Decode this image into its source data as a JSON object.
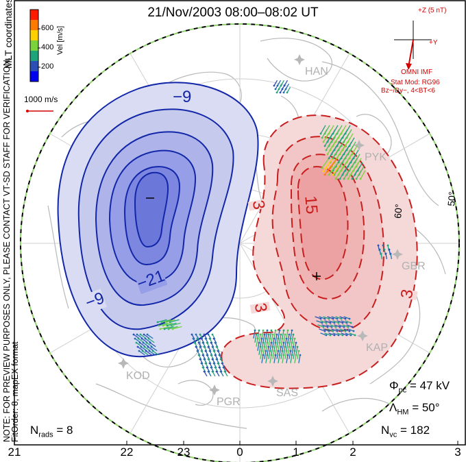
{
  "title": "21/Nov/2003 08:00–08:02 UT",
  "coord_label": "MLT coordinates",
  "note_line1": "NOTE: FOR PREVIEW PURPOSES ONLY, PLEASE CONTACT VT-SD STAFF FOR VERIFICATION.",
  "note_line2": "FitOrder: 8, mapEX format",
  "colorbar": {
    "label": "Vel [m/s]",
    "ticks": [
      "600",
      "400",
      "200"
    ],
    "colors": [
      "#ff1a00",
      "#ff7a00",
      "#ffd000",
      "#7ad23c",
      "#1fa37a",
      "#2b4fb4",
      "#0000ee"
    ]
  },
  "scale_vector_label": "1000 m/s",
  "imf": {
    "z_label": "+Z (5 nT)",
    "y_label": "+Y",
    "source": "OMNI IMF",
    "model_line1": "Stat Mod: RG96",
    "model_line2": "Bz−/By−, 4<BT<6"
  },
  "contour_labels": {
    "neg": [
      "−9",
      "−21",
      "−9"
    ],
    "pos": [
      "3",
      "15",
      "3",
      "3"
    ]
  },
  "extrema": {
    "min_marker": "−",
    "max_marker": "+"
  },
  "latitude_labels": [
    "50°",
    "60°"
  ],
  "stations": [
    "HAN",
    "PYK",
    "GBR",
    "KAP",
    "SAS",
    "PGR",
    "KOD"
  ],
  "mlt_ticks": [
    "21",
    "22",
    "23",
    "0",
    "1",
    "2",
    "3"
  ],
  "stats": {
    "phi_pc_prefix": "Φ",
    "phi_pc_sub": "pc",
    "phi_pc_value": " = 47 kV",
    "lambda_prefix": "Λ",
    "lambda_sub": "HM",
    "lambda_value": " = 50°",
    "nrads_prefix": "N",
    "nrads_sub": "rads",
    "nrads_value": " = 8",
    "nvc_prefix": "N",
    "nvc_sub": "vc",
    "nvc_value": " = 182"
  }
}
